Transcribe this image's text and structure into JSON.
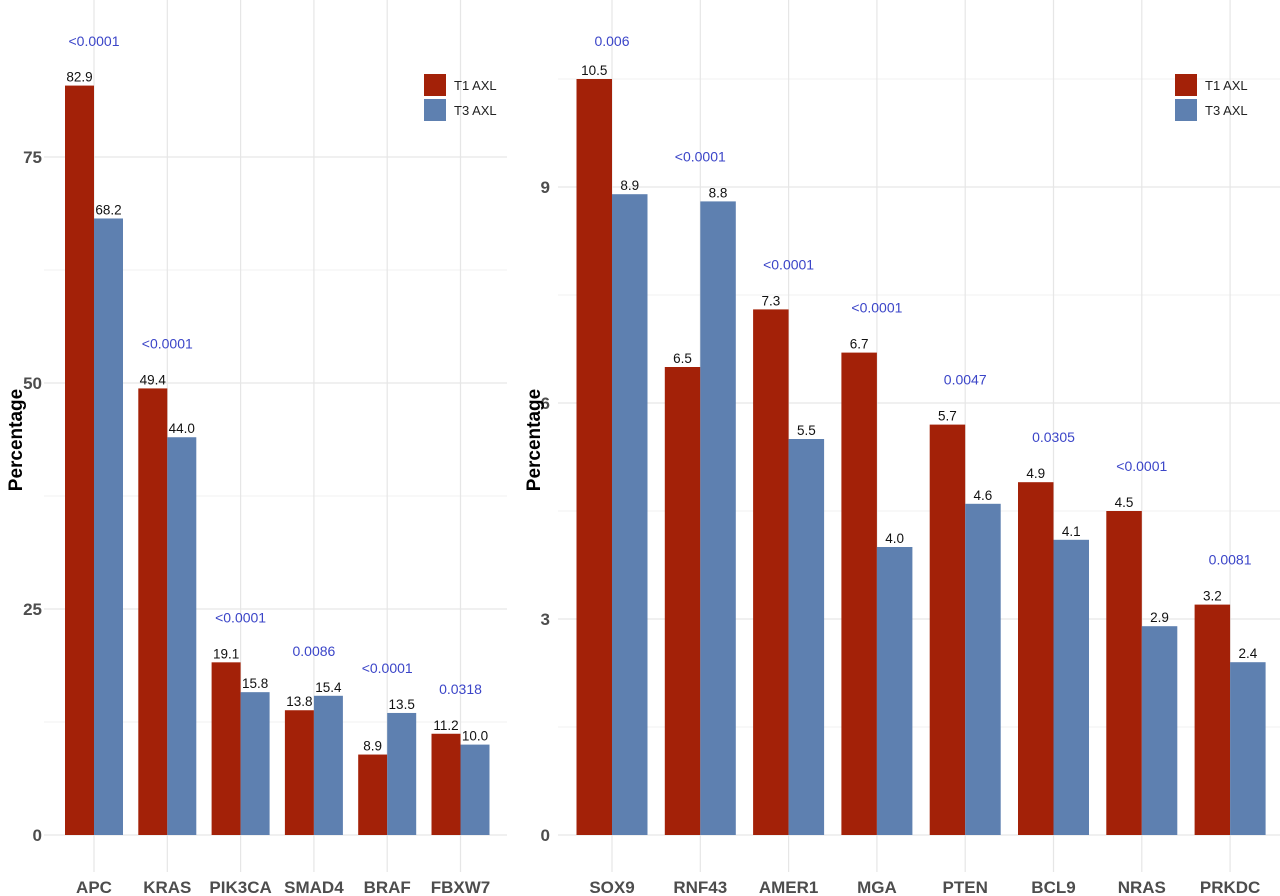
{
  "colors": {
    "t1": "#A32108",
    "t3": "#5E80B0",
    "pvalue": "#3B45C8"
  },
  "chart_data": [
    {
      "type": "bar",
      "title": "",
      "xlabel": "",
      "ylabel": "Percentage",
      "ylim": [
        0,
        87
      ],
      "yticks": [
        0,
        25,
        50,
        75
      ],
      "grid": true,
      "legend": {
        "placement": "top-right",
        "entries": [
          "T1 AXL",
          "T3 AXL"
        ]
      },
      "categories": [
        "APC",
        "KRAS",
        "PIK3CA",
        "SMAD4",
        "BRAF",
        "FBXW7"
      ],
      "series": [
        {
          "name": "T1 AXL",
          "values": [
            82.9,
            49.4,
            19.1,
            13.8,
            8.9,
            11.2
          ],
          "labels": [
            "82.9",
            "49.4",
            "19.1",
            "13.8",
            "8.9",
            "11.2"
          ]
        },
        {
          "name": "T3 AXL",
          "values": [
            68.2,
            44.0,
            15.8,
            15.4,
            13.5,
            10.0
          ],
          "labels": [
            "68.2",
            "44.0",
            "15.8",
            "15.4",
            "13.5",
            "10.0"
          ]
        }
      ],
      "annotations": [
        "<0.0001",
        "<0.0001",
        "<0.0001",
        "0.0086",
        "<0.0001",
        "0.0318"
      ]
    },
    {
      "type": "bar",
      "title": "",
      "xlabel": "",
      "ylabel": "Percentage",
      "ylim": [
        0,
        11
      ],
      "yticks": [
        0,
        3,
        6,
        9
      ],
      "grid": true,
      "legend": {
        "placement": "top-right",
        "entries": [
          "T1 AXL",
          "T3 AXL"
        ]
      },
      "categories": [
        "SOX9",
        "RNF43",
        "AMER1",
        "MGA",
        "PTEN",
        "BCL9",
        "NRAS",
        "PRKDC"
      ],
      "series": [
        {
          "name": "T1 AXL",
          "values": [
            10.5,
            6.5,
            7.3,
            6.7,
            5.7,
            4.9,
            4.5,
            3.2
          ],
          "labels": [
            "10.5",
            "6.5",
            "7.3",
            "6.7",
            "5.7",
            "4.9",
            "4.5",
            "3.2"
          ]
        },
        {
          "name": "T3 AXL",
          "values": [
            8.9,
            8.8,
            5.5,
            4.0,
            4.6,
            4.1,
            2.9,
            2.4
          ],
          "labels": [
            "8.9",
            "8.8",
            "5.5",
            "4.0",
            "4.6",
            "4.1",
            "2.9",
            "2.4"
          ]
        }
      ],
      "annotations": [
        "0.006",
        "<0.0001",
        "<0.0001",
        "<0.0001",
        "0.0047",
        "0.0305",
        "<0.0001",
        "0.0081"
      ]
    }
  ]
}
